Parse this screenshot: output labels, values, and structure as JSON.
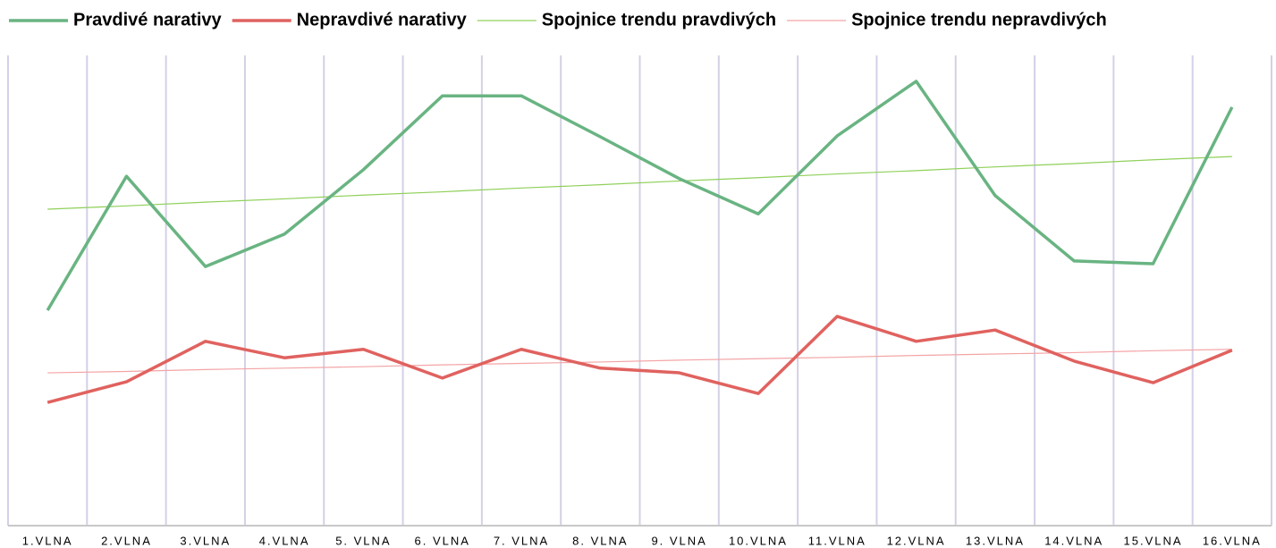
{
  "chart_data": {
    "type": "line",
    "categories": [
      "1.VLNA",
      "2.VLNA",
      "3.VLNA",
      "4.VLNA",
      "5. VLNA",
      "6. VLNA",
      "7. VLNA",
      "8. VLNA",
      "9. VLNA",
      "10.VLNA",
      "11.VLNA",
      "12.VLNA",
      "13.VLNA",
      "14.VLNA",
      "15.VLNA",
      "16.VLNA"
    ],
    "series": [
      {
        "name": "Pravdivé narativy",
        "color": "#69b482",
        "line_width": 3.5,
        "values": [
          45.8,
          74.3,
          55.1,
          62.0,
          75.7,
          91.4,
          91.4,
          82.7,
          73.8,
          66.3,
          82.9,
          94.5,
          70.2,
          56.3,
          55.7,
          89.0
        ]
      },
      {
        "name": "Nepravdivé narativy",
        "color": "#e0625f",
        "line_width": 3.5,
        "values": [
          26.2,
          30.6,
          39.2,
          35.7,
          37.5,
          31.4,
          37.5,
          33.5,
          32.5,
          28.1,
          44.5,
          39.2,
          41.6,
          35.0,
          30.4,
          37.3
        ]
      },
      {
        "name": "Spojnice trendu pravdivých",
        "color": "#8fd05a",
        "line_width": 1.2,
        "values": [
          67.3,
          68.0,
          68.8,
          69.5,
          70.3,
          71.0,
          71.8,
          72.5,
          73.3,
          74.0,
          74.8,
          75.5,
          76.3,
          77.0,
          77.8,
          78.5
        ]
      },
      {
        "name": "Spojnice trendu nepravdivých",
        "color": "#f4a4a6",
        "line_width": 1.2,
        "values": [
          32.5,
          32.8,
          33.2,
          33.5,
          33.8,
          34.2,
          34.5,
          34.8,
          35.2,
          35.5,
          35.8,
          36.2,
          36.5,
          36.8,
          37.2,
          37.5
        ]
      }
    ],
    "ylim": [
      0,
      100
    ],
    "legend": "top"
  }
}
